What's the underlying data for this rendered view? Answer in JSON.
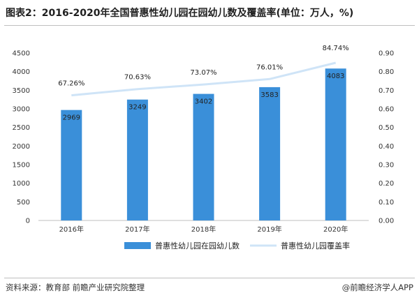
{
  "title": "图表2：2016-2020年全国普惠性幼儿园在园幼儿数及覆盖率(单位：万人，%)",
  "footer": {
    "source": "资料来源：教育部 前瞻产业研究院整理",
    "brand": "@前瞻经济学人APP"
  },
  "colors": {
    "bar": "#3a8fd9",
    "line": "#cfe4f7",
    "rule": "#bfbfbf"
  },
  "chart_data": {
    "type": "bar",
    "categories": [
      "2016年",
      "2017年",
      "2018年",
      "2019年",
      "2020年"
    ],
    "series": [
      {
        "name": "普惠性幼儿园在园幼儿数",
        "type": "bar",
        "axis": "left",
        "values": [
          2969,
          3249,
          3402,
          3583,
          4083
        ],
        "labels": [
          "2969",
          "3249",
          "3402",
          "3583",
          "4083"
        ]
      },
      {
        "name": "普惠性幼儿园覆盖率",
        "type": "line",
        "axis": "right",
        "values": [
          0.6726,
          0.7063,
          0.7307,
          0.7601,
          0.8474
        ],
        "labels": [
          "67.26%",
          "70.63%",
          "73.07%",
          "76.01%",
          "84.74%"
        ]
      }
    ],
    "ylim_left": [
      0,
      4500
    ],
    "yticks_left": [
      "0",
      "500",
      "1000",
      "1500",
      "2000",
      "2500",
      "3000",
      "3500",
      "4000",
      "4500"
    ],
    "ylim_right": [
      0,
      0.9
    ],
    "yticks_right": [
      "0.00",
      "0.10",
      "0.20",
      "0.30",
      "0.40",
      "0.50",
      "0.60",
      "0.70",
      "0.80",
      "0.90"
    ],
    "grid": false,
    "legend_position": "bottom"
  }
}
